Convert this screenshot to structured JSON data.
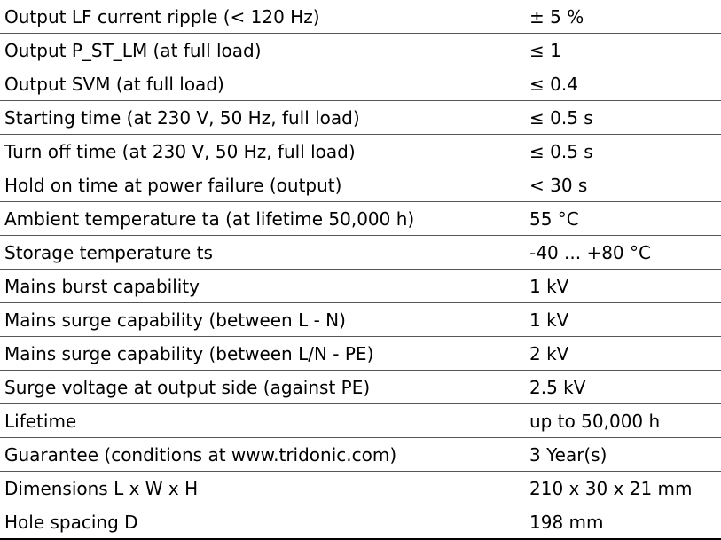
{
  "table": {
    "rows": [
      [
        "Output LF current ripple (< 120 Hz)",
        "± 5 %"
      ],
      [
        "Output P_ST_LM (at full load)",
        "≤ 1"
      ],
      [
        "Output SVM (at full load)",
        "≤ 0.4"
      ],
      [
        "Starting time (at 230 V, 50 Hz, full load)",
        "≤ 0.5 s"
      ],
      [
        "Turn off time (at 230 V, 50 Hz, full load)",
        "≤ 0.5 s"
      ],
      [
        "Hold on time at power failure (output)",
        "< 30 s"
      ],
      [
        "Ambient temperature ta (at lifetime 50,000 h)",
        "55 °C"
      ],
      [
        "Storage temperature ts",
        "-40 ... +80 °C"
      ],
      [
        "Mains burst capability",
        "1 kV"
      ],
      [
        "Mains surge capability (between L - N)",
        "1 kV"
      ],
      [
        "Mains surge capability (between L/N - PE)",
        "2 kV"
      ],
      [
        "Surge voltage at output side (against PE)",
        "2.5 kV"
      ],
      [
        "Lifetime",
        "up to 50,000 h"
      ],
      [
        "Guarantee (conditions at www.tridonic.com)",
        "3 Year(s)"
      ],
      [
        "Dimensions L x W x H",
        "210 x 30 x 21 mm"
      ],
      [
        "Hole spacing D",
        "198 mm"
      ]
    ]
  }
}
